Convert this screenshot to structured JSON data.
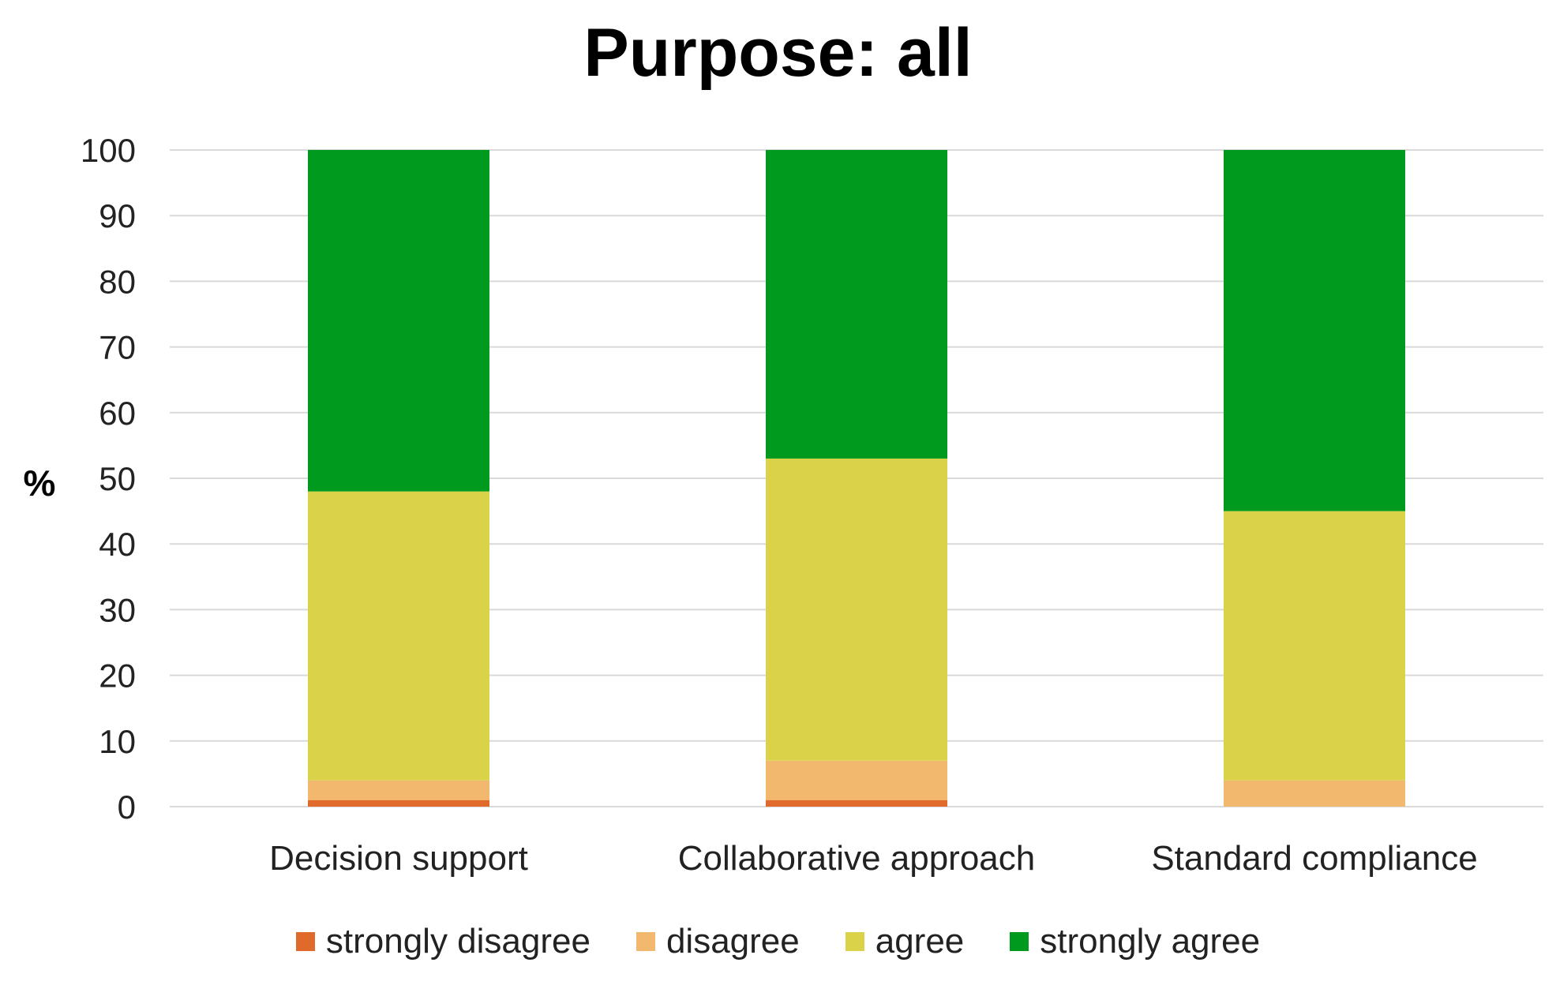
{
  "chart_data": {
    "type": "bar",
    "stacked": true,
    "title": "Purpose: all",
    "xlabel": "",
    "ylabel": "%",
    "ylim": [
      0,
      100
    ],
    "yticks": [
      0,
      10,
      20,
      30,
      40,
      50,
      60,
      70,
      80,
      90,
      100
    ],
    "grid": true,
    "legend_position": "bottom",
    "categories": [
      "Decision support",
      "Collaborative approach",
      "Standard compliance"
    ],
    "series": [
      {
        "name": "strongly disagree",
        "color": "#e06a2c",
        "values": [
          1,
          1,
          0
        ]
      },
      {
        "name": "disagree",
        "color": "#f2b96e",
        "values": [
          3,
          6,
          4
        ]
      },
      {
        "name": "agree",
        "color": "#dad349",
        "values": [
          44,
          46,
          41
        ]
      },
      {
        "name": "strongly agree",
        "color": "#009a1f",
        "values": [
          52,
          47,
          55
        ]
      }
    ]
  }
}
